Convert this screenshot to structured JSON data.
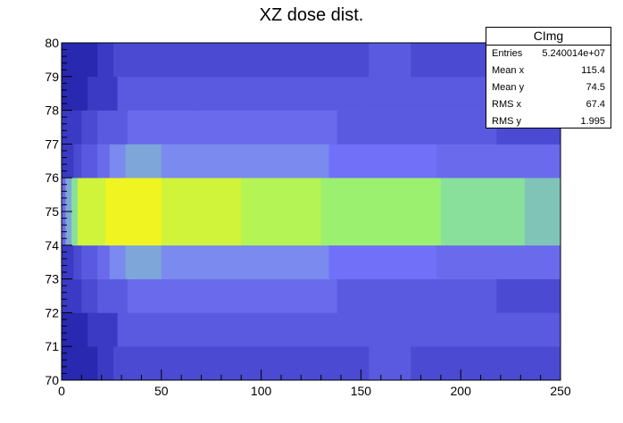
{
  "title": "XZ dose dist.",
  "stats": {
    "name": "CImg",
    "rows": [
      {
        "label": "Entries",
        "value": "5.240014e+07"
      },
      {
        "label": "Mean x",
        "value": "115.4"
      },
      {
        "label": "Mean y",
        "value": "74.5"
      },
      {
        "label": "RMS x",
        "value": "67.4"
      },
      {
        "label": "RMS y",
        "value": "1.995"
      }
    ]
  },
  "chart_data": {
    "type": "heatmap",
    "title": "XZ dose dist.",
    "xlabel": "",
    "ylabel": "",
    "xlim": [
      0,
      250
    ],
    "ylim": [
      70,
      80
    ],
    "xticks": [
      0,
      50,
      100,
      150,
      200,
      250
    ],
    "yticks": [
      70,
      71,
      72,
      73,
      74,
      75,
      76,
      77,
      78,
      79,
      80
    ],
    "colormap": [
      "#1c1c9c",
      "#2828b0",
      "#3a3ac4",
      "#4a4ad2",
      "#5a5ae0",
      "#6a6aec",
      "#7070f8",
      "#7a8aee",
      "#7ea6d8",
      "#80c4b8",
      "#88e09a",
      "#9cf070",
      "#b4f454",
      "#d0f43a",
      "#f0f420"
    ],
    "rows": [
      {
        "y": [
          70,
          71
        ],
        "cells": [
          [
            0,
            18,
            1
          ],
          [
            18,
            26,
            2
          ],
          [
            26,
            154,
            3
          ],
          [
            154,
            175,
            4
          ],
          [
            175,
            250,
            3
          ]
        ]
      },
      {
        "y": [
          71,
          72
        ],
        "cells": [
          [
            0,
            13,
            1
          ],
          [
            13,
            28,
            2
          ],
          [
            28,
            150,
            4
          ],
          [
            150,
            212,
            4
          ],
          [
            212,
            250,
            4
          ]
        ]
      },
      {
        "y": [
          72,
          73
        ],
        "cells": [
          [
            0,
            10,
            2
          ],
          [
            10,
            18,
            3
          ],
          [
            18,
            33,
            4
          ],
          [
            33,
            67,
            5
          ],
          [
            67,
            138,
            5
          ],
          [
            138,
            218,
            4
          ],
          [
            218,
            250,
            3
          ]
        ]
      },
      {
        "y": [
          73,
          74
        ],
        "cells": [
          [
            0,
            6,
            2
          ],
          [
            6,
            10,
            3
          ],
          [
            10,
            18,
            4
          ],
          [
            18,
            24,
            5
          ],
          [
            24,
            32,
            7
          ],
          [
            32,
            50,
            8
          ],
          [
            50,
            88,
            7
          ],
          [
            88,
            134,
            7
          ],
          [
            134,
            160,
            6
          ],
          [
            160,
            188,
            6
          ],
          [
            188,
            250,
            5
          ]
        ]
      },
      {
        "y": [
          74,
          75
        ],
        "cells": [
          [
            0,
            2,
            5
          ],
          [
            2,
            5,
            8
          ],
          [
            5,
            8,
            10
          ],
          [
            8,
            14,
            13
          ],
          [
            14,
            22,
            13
          ],
          [
            22,
            50,
            14
          ],
          [
            50,
            90,
            13
          ],
          [
            90,
            130,
            12
          ],
          [
            130,
            165,
            11
          ],
          [
            165,
            190,
            11
          ],
          [
            190,
            210,
            10
          ],
          [
            210,
            232,
            10
          ],
          [
            232,
            250,
            9
          ]
        ]
      },
      {
        "y": [
          75,
          76
        ],
        "cells": [
          [
            0,
            2,
            5
          ],
          [
            2,
            5,
            8
          ],
          [
            5,
            8,
            10
          ],
          [
            8,
            14,
            13
          ],
          [
            14,
            22,
            13
          ],
          [
            22,
            50,
            14
          ],
          [
            50,
            90,
            13
          ],
          [
            90,
            130,
            12
          ],
          [
            130,
            165,
            11
          ],
          [
            165,
            190,
            11
          ],
          [
            190,
            210,
            10
          ],
          [
            210,
            232,
            10
          ],
          [
            232,
            250,
            9
          ]
        ]
      },
      {
        "y": [
          76,
          77
        ],
        "cells": [
          [
            0,
            6,
            2
          ],
          [
            6,
            10,
            3
          ],
          [
            10,
            18,
            4
          ],
          [
            18,
            24,
            5
          ],
          [
            24,
            32,
            7
          ],
          [
            32,
            50,
            8
          ],
          [
            50,
            88,
            7
          ],
          [
            88,
            134,
            7
          ],
          [
            134,
            160,
            6
          ],
          [
            160,
            188,
            6
          ],
          [
            188,
            250,
            5
          ]
        ]
      },
      {
        "y": [
          77,
          78
        ],
        "cells": [
          [
            0,
            10,
            2
          ],
          [
            10,
            18,
            3
          ],
          [
            18,
            33,
            4
          ],
          [
            33,
            67,
            5
          ],
          [
            67,
            138,
            5
          ],
          [
            138,
            218,
            4
          ],
          [
            218,
            250,
            3
          ]
        ]
      },
      {
        "y": [
          78,
          79
        ],
        "cells": [
          [
            0,
            13,
            1
          ],
          [
            13,
            28,
            2
          ],
          [
            28,
            150,
            4
          ],
          [
            150,
            212,
            4
          ],
          [
            212,
            250,
            4
          ]
        ]
      },
      {
        "y": [
          79,
          80
        ],
        "cells": [
          [
            0,
            18,
            1
          ],
          [
            18,
            26,
            2
          ],
          [
            26,
            154,
            3
          ],
          [
            154,
            175,
            4
          ],
          [
            175,
            250,
            3
          ]
        ]
      }
    ]
  }
}
